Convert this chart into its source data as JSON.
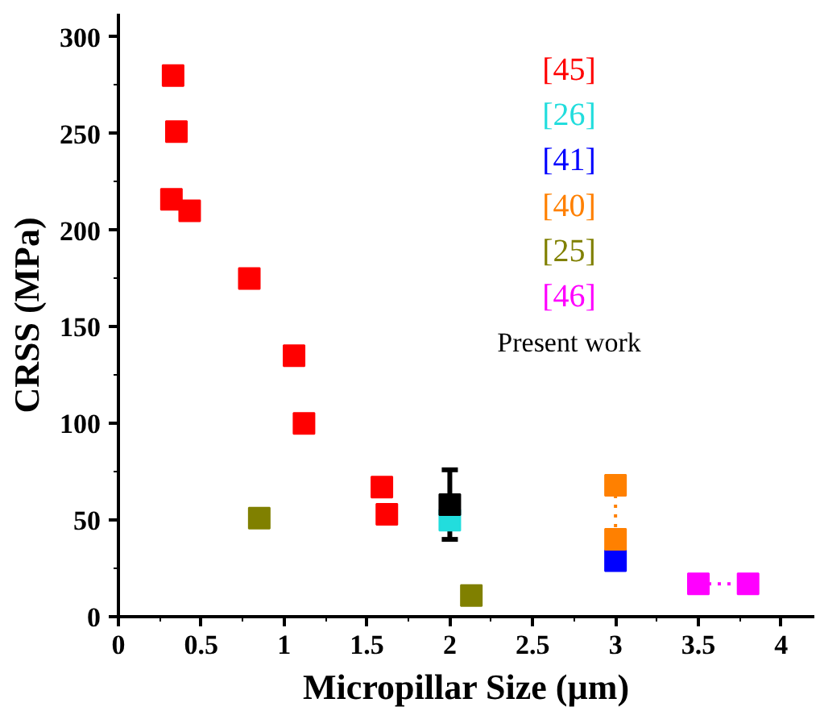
{
  "chart_data": {
    "type": "scatter",
    "xlabel": "Micropillar Size (µm)",
    "ylabel": "CRSS (MPa)",
    "xlim": [
      0,
      4.2
    ],
    "ylim": [
      0,
      312
    ],
    "xticks": [
      0,
      0.5,
      1,
      1.5,
      2,
      2.5,
      3,
      3.5,
      4
    ],
    "yticks": [
      0,
      50,
      100,
      150,
      200,
      250,
      300
    ],
    "marker": "square",
    "legend": "top right",
    "grid": false,
    "series": [
      {
        "name": "[45]",
        "color": "#ff0000",
        "x": [
          0.33,
          0.35,
          0.32,
          0.43,
          0.79,
          1.06,
          1.12,
          1.59,
          1.62
        ],
        "values": [
          280,
          251,
          216,
          210,
          175,
          135,
          100,
          67,
          53
        ]
      },
      {
        "name": "[26]",
        "color": "#22dddd",
        "x": [
          2
        ],
        "values": [
          50
        ]
      },
      {
        "name": "[41]",
        "color": "#0000ff",
        "x": [
          3
        ],
        "values": [
          29
        ]
      },
      {
        "name": "[40]",
        "type": "line",
        "line_style": "dotted",
        "color": "#ff8000",
        "x": [
          3,
          3
        ],
        "values": [
          68,
          40
        ]
      },
      {
        "name": "[25]",
        "color": "#808000",
        "x": [
          0.85,
          2.13
        ],
        "values": [
          51,
          11
        ]
      },
      {
        "name": "[46]",
        "type": "line",
        "line_style": "dotted",
        "color": "#ff00ff",
        "x": [
          3.5,
          3.8
        ],
        "values": [
          17,
          17
        ]
      },
      {
        "name": "Present work",
        "color": "#000000",
        "x": [
          2
        ],
        "values": [
          58
        ],
        "errors": [
          [
            40,
            76
          ]
        ]
      }
    ]
  }
}
